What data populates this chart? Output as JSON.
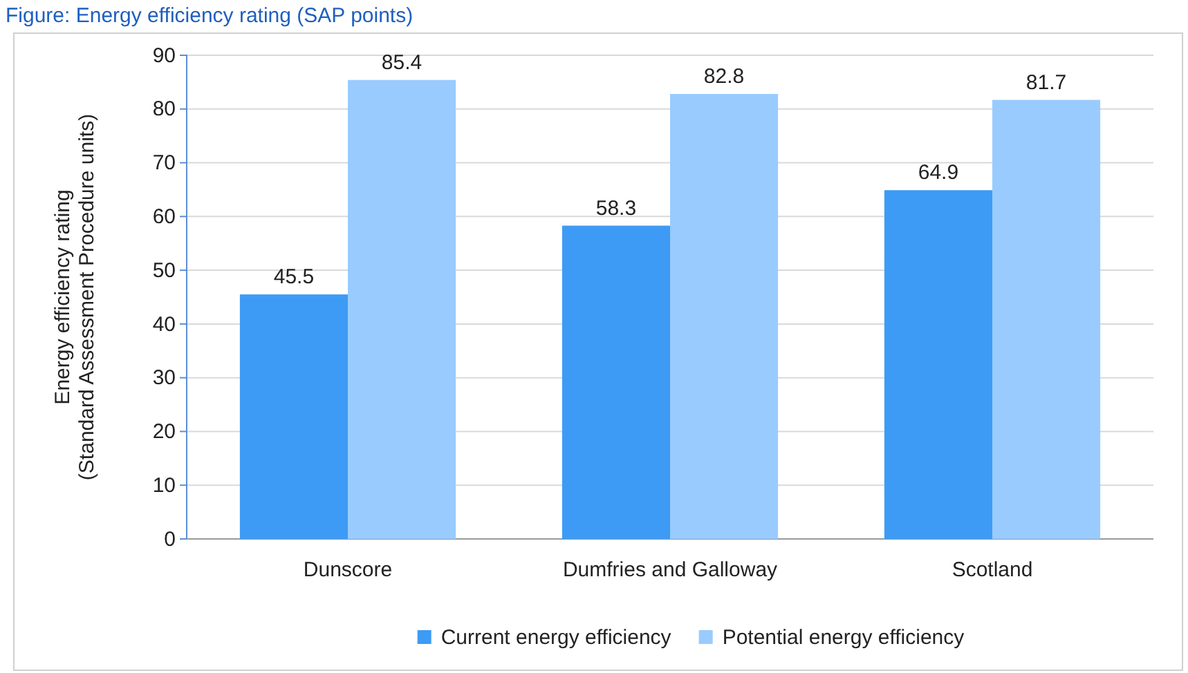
{
  "chart_data": {
    "type": "bar",
    "title": "Figure: Energy efficiency rating (SAP points)",
    "ylabel": "Energy efficiency rating\n(Standard Assessment Procedure units)",
    "categories": [
      "Dunscore",
      "Dumfries and Galloway",
      "Scotland"
    ],
    "series": [
      {
        "name": "Current energy efficiency",
        "color": "#3d9bf5",
        "values": [
          45.5,
          58.3,
          64.9
        ]
      },
      {
        "name": "Potential energy efficiency",
        "color": "#99cbff",
        "values": [
          85.4,
          82.8,
          81.7
        ]
      }
    ],
    "ylim": [
      0,
      90
    ],
    "yticks": [
      0,
      10,
      20,
      30,
      40,
      50,
      60,
      70,
      80,
      90
    ],
    "grid": "y",
    "legend": "bottom",
    "data_labels": true
  }
}
